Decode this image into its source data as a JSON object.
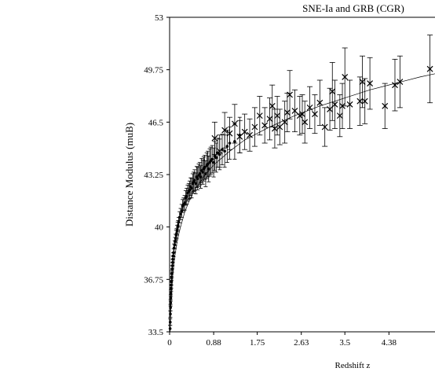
{
  "chart_data": {
    "type": "scatter",
    "title": "SNE-Ia and GRB (CGR)",
    "xlabel": "Redshift z",
    "ylabel": "Distance Modulus (muB)",
    "xlim": [
      0,
      5.3
    ],
    "ylim": [
      33.5,
      53
    ],
    "x_ticks": [
      "0",
      "0.88",
      "1.75",
      "2.63",
      "3.5",
      "4.38"
    ],
    "x_tick_values": [
      0,
      0.88,
      1.75,
      2.63,
      3.5,
      4.38
    ],
    "y_ticks": [
      "33.5",
      "36.75",
      "40",
      "43.25",
      "46.5",
      "49.75",
      "53"
    ],
    "y_tick_values": [
      33.5,
      36.75,
      40,
      43.25,
      46.5,
      49.75,
      53
    ],
    "fit_line": {
      "x": [
        0.01,
        0.03,
        0.06,
        0.1,
        0.15,
        0.2,
        0.3,
        0.4,
        0.5,
        0.7,
        0.9,
        1.2,
        1.5,
        2.0,
        2.5,
        3.0,
        3.5,
        4.0,
        4.5,
        5.0,
        5.3
      ],
      "y": [
        33.6,
        35.3,
        36.9,
        38.1,
        39.1,
        39.8,
        40.9,
        41.7,
        42.3,
        43.2,
        43.9,
        44.7,
        45.4,
        46.2,
        46.9,
        47.5,
        48.0,
        48.5,
        48.9,
        49.3,
        49.5
      ]
    },
    "series": [
      {
        "marker": "dot",
        "x": [
          0.01,
          0.012,
          0.015,
          0.018,
          0.02,
          0.023,
          0.026,
          0.03,
          0.033,
          0.036,
          0.04,
          0.045,
          0.05,
          0.055,
          0.06,
          0.065,
          0.07,
          0.08,
          0.09,
          0.1,
          0.11,
          0.12,
          0.13,
          0.14,
          0.15,
          0.16,
          0.17,
          0.18,
          0.2,
          0.22,
          0.24,
          0.26,
          0.28,
          0.3,
          0.32,
          0.34,
          0.36,
          0.38,
          0.4,
          0.42,
          0.44,
          0.46,
          0.48,
          0.5,
          0.52,
          0.54,
          0.56,
          0.58,
          0.6,
          0.62,
          0.64,
          0.66,
          0.68,
          0.7,
          0.72,
          0.74,
          0.76,
          0.78,
          0.8,
          0.82,
          0.85,
          0.88,
          0.9,
          0.93,
          0.96,
          1.0,
          1.05,
          1.1,
          1.15,
          1.2,
          1.3,
          1.4
        ],
        "y": [
          33.7,
          34.1,
          34.6,
          35.0,
          35.3,
          35.6,
          35.9,
          36.2,
          36.4,
          36.6,
          36.9,
          37.1,
          37.4,
          37.6,
          37.8,
          38.0,
          38.2,
          38.4,
          38.7,
          38.9,
          39.1,
          39.3,
          39.5,
          39.6,
          39.8,
          40.0,
          40.1,
          40.3,
          40.6,
          40.8,
          41.0,
          41.3,
          41.4,
          41.5,
          41.8,
          41.9,
          42.1,
          42.2,
          42.3,
          42.5,
          42.4,
          42.7,
          42.8,
          42.9,
          42.7,
          43.1,
          43.0,
          43.2,
          43.3,
          43.1,
          43.5,
          43.4,
          43.6,
          43.7,
          43.3,
          43.8,
          43.9,
          43.6,
          44.0,
          44.1,
          44.2,
          44.0,
          44.4,
          44.3,
          44.6,
          44.5,
          44.8,
          44.7,
          45.0,
          45.2,
          45.3,
          45.7
        ],
        "err": [
          0.2,
          0.2,
          0.2,
          0.2,
          0.2,
          0.2,
          0.2,
          0.2,
          0.2,
          0.2,
          0.2,
          0.2,
          0.2,
          0.2,
          0.2,
          0.2,
          0.2,
          0.25,
          0.25,
          0.25,
          0.25,
          0.25,
          0.3,
          0.3,
          0.3,
          0.3,
          0.3,
          0.3,
          0.35,
          0.35,
          0.4,
          0.4,
          0.4,
          0.45,
          0.45,
          0.5,
          0.5,
          0.5,
          0.55,
          0.55,
          0.6,
          0.6,
          0.6,
          0.65,
          0.65,
          0.65,
          0.7,
          0.7,
          0.7,
          0.7,
          0.75,
          0.75,
          0.75,
          0.75,
          0.8,
          0.8,
          0.8,
          0.8,
          0.85,
          0.85,
          0.85,
          0.9,
          0.9,
          0.9,
          0.9,
          0.95,
          0.95,
          1.0,
          1.0,
          1.0,
          1.1,
          1.1
        ]
      },
      {
        "marker": "x",
        "x": [
          0.9,
          1.0,
          1.1,
          1.2,
          1.3,
          1.4,
          1.5,
          1.6,
          1.7,
          1.8,
          1.9,
          2.0,
          2.05,
          2.1,
          2.15,
          2.2,
          2.3,
          2.35,
          2.4,
          2.5,
          2.6,
          2.65,
          2.7,
          2.8,
          2.9,
          3.0,
          3.1,
          3.2,
          3.25,
          3.3,
          3.4,
          3.45,
          3.5,
          3.6,
          3.8,
          3.85,
          3.9,
          4.0,
          4.3,
          4.5,
          4.6,
          5.2
        ],
        "y": [
          45.5,
          44.7,
          46.0,
          45.8,
          46.4,
          45.6,
          45.9,
          45.7,
          46.2,
          46.9,
          46.3,
          46.7,
          47.5,
          46.1,
          46.9,
          46.2,
          46.5,
          47.1,
          48.2,
          47.2,
          46.9,
          47.0,
          46.5,
          47.4,
          47.0,
          47.7,
          46.2,
          47.3,
          48.4,
          47.6,
          46.9,
          47.5,
          49.3,
          47.6,
          47.8,
          49.0,
          47.8,
          48.9,
          47.5,
          48.8,
          49.0,
          49.8
        ],
        "err": [
          1.0,
          1.0,
          1.1,
          1.0,
          1.2,
          1.0,
          1.1,
          1.0,
          1.2,
          1.2,
          1.1,
          1.3,
          1.3,
          1.2,
          1.2,
          1.1,
          1.3,
          1.2,
          1.5,
          1.3,
          1.2,
          1.2,
          1.3,
          1.3,
          1.2,
          1.4,
          1.2,
          1.3,
          1.8,
          1.5,
          1.3,
          1.4,
          1.8,
          1.5,
          1.5,
          1.6,
          1.4,
          1.6,
          1.4,
          1.6,
          1.6,
          2.1
        ]
      }
    ]
  }
}
